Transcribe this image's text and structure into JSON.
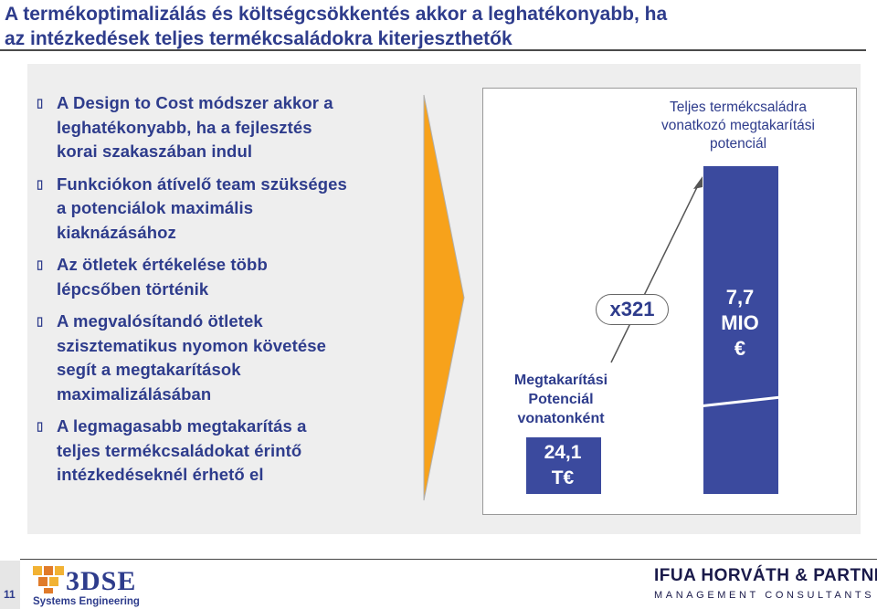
{
  "title": {
    "line1": "A termékoptimalizálás és költségcsökkentés akkor a leghatékonyabb, ha",
    "line2": "az intézkedések teljes termékcsaládokra kiterjeszthetők"
  },
  "bullets": [
    [
      "A Design to Cost módszer akkor a",
      "leghatékonyabb, ha a fejlesztés",
      "korai szakaszában indul"
    ],
    [
      "Funkciókon átívelő team szükséges",
      "a potenciálok maximális",
      "kiaknázásához"
    ],
    [
      "Az ötletek értékelése több",
      "lépcsőben történik"
    ],
    [
      "A megvalósítandó ötletek",
      "szisztematikus nyomon követése",
      "segít a megtakarítások",
      "maximalizálásában"
    ],
    [
      "A legmagasabb megtakarítás a",
      "teljes termékcsaládokat érintő",
      "intézkedéseknél érhető el"
    ]
  ],
  "bullet_marker": "▯",
  "figure": {
    "big_bar_label": [
      "Teljes termékcsaládra",
      "vonatkozó megtakarítási",
      "potenciál"
    ],
    "big_bar_value": [
      "7,7",
      "MIO",
      "€"
    ],
    "small_bar_label": [
      "Megtakarítási",
      "Potenciál",
      "vonatonként"
    ],
    "small_bar_value": [
      "24,1",
      "T€"
    ],
    "multiplier": "x321",
    "small_value_numeric": 24.1,
    "big_value_numeric": 7700,
    "colors": {
      "bar": "#3b4a9e",
      "arrow": "#f5a623",
      "text": "#2e3c8c"
    }
  },
  "footer": {
    "page_number": "11",
    "left_logo": {
      "brand": "3DSE",
      "subtitle": "Systems Engineering"
    },
    "right_logo": {
      "line1": "IFUA HORVÁTH & PARTNERS",
      "line2": "MANAGEMENT CONSULTANTS"
    }
  }
}
